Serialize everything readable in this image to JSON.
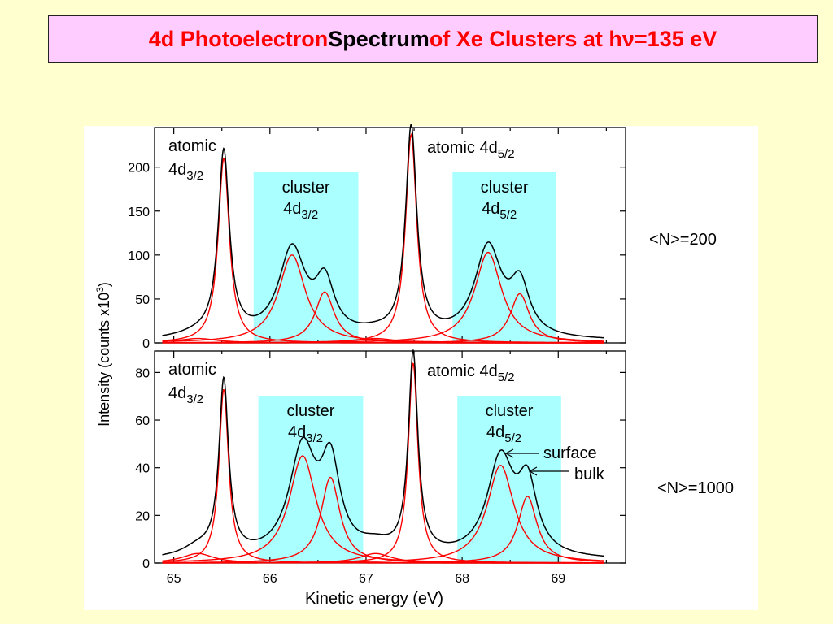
{
  "title": {
    "part1": "4d Photoelectron ",
    "part2": "Spectrum",
    "part3": " of Xe Clusters at h",
    "nu": "ν",
    "part4": "=135 eV"
  },
  "colors": {
    "background": "#ffffd0",
    "title_box": "#ffccff",
    "title_text_red": "#ff0000",
    "cluster_band": "#aaffff",
    "fit_curve": "#ff0000",
    "data_curve": "#000000"
  },
  "chart_data": {
    "type": "line",
    "xlabel": "Kinetic energy (eV)",
    "ylabel_main": "Intensity (counts x10",
    "ylabel_sup": "3",
    "ylabel_end": ")",
    "xlim": [
      64.8,
      69.7
    ],
    "xticks": [
      "65",
      "66",
      "67",
      "68",
      "69"
    ],
    "panels": [
      {
        "label": "<N>=200",
        "ylim": [
          0,
          245
        ],
        "yticks": [
          "0",
          "50",
          "100",
          "150",
          "200"
        ],
        "band_ranges": [
          [
            65.83,
            66.92
          ],
          [
            67.9,
            68.98
          ]
        ],
        "annotations": {
          "atomic_32_line1": "atomic",
          "atomic_32_line2": "4d",
          "atomic_32_sub": "3/2",
          "cluster_32_line1": "cluster",
          "cluster_32_line2": "4d",
          "cluster_32_sub": "3/2",
          "atomic_52_main": "atomic 4d",
          "atomic_52_sub": "5/2",
          "cluster_52_line1": "cluster",
          "cluster_52_line2": "4d",
          "cluster_52_sub": "5/2"
        },
        "peaks": [
          {
            "center": 65.52,
            "height": 210,
            "width": 0.07
          },
          {
            "center": 66.23,
            "height": 100,
            "width": 0.17
          },
          {
            "center": 66.57,
            "height": 58,
            "width": 0.12
          },
          {
            "center": 67.47,
            "height": 237,
            "width": 0.07
          },
          {
            "center": 68.27,
            "height": 103,
            "width": 0.17
          },
          {
            "center": 68.6,
            "height": 56,
            "width": 0.12
          },
          {
            "center": 65.25,
            "height": 5,
            "width": 0.25
          },
          {
            "center": 67.1,
            "height": 5,
            "width": 0.25
          }
        ],
        "baseline": 2
      },
      {
        "label": "<N>=1000",
        "ylim": [
          0,
          89
        ],
        "yticks": [
          "0",
          "20",
          "40",
          "60",
          "80"
        ],
        "band_ranges": [
          [
            65.88,
            66.97
          ],
          [
            67.95,
            69.03
          ]
        ],
        "annotations": {
          "atomic_32_line1": "atomic",
          "atomic_32_line2": "4d",
          "atomic_32_sub": "3/2",
          "cluster_32_line1": "cluster",
          "cluster_32_line2": "4d",
          "cluster_32_sub": "3/2",
          "atomic_52_main": "atomic 4d",
          "atomic_52_sub": "5/2",
          "cluster_52_line1": "cluster",
          "cluster_52_line2": "4d",
          "cluster_52_sub": "5/2",
          "surface": "surface",
          "bulk": "bulk"
        },
        "peaks": [
          {
            "center": 65.52,
            "height": 73,
            "width": 0.06
          },
          {
            "center": 66.34,
            "height": 45,
            "width": 0.17
          },
          {
            "center": 66.63,
            "height": 36,
            "width": 0.12
          },
          {
            "center": 67.49,
            "height": 84,
            "width": 0.06
          },
          {
            "center": 68.4,
            "height": 41,
            "width": 0.17
          },
          {
            "center": 68.68,
            "height": 28,
            "width": 0.12
          },
          {
            "center": 65.25,
            "height": 4,
            "width": 0.2
          },
          {
            "center": 67.1,
            "height": 4,
            "width": 0.2
          }
        ],
        "baseline": 1
      }
    ]
  }
}
